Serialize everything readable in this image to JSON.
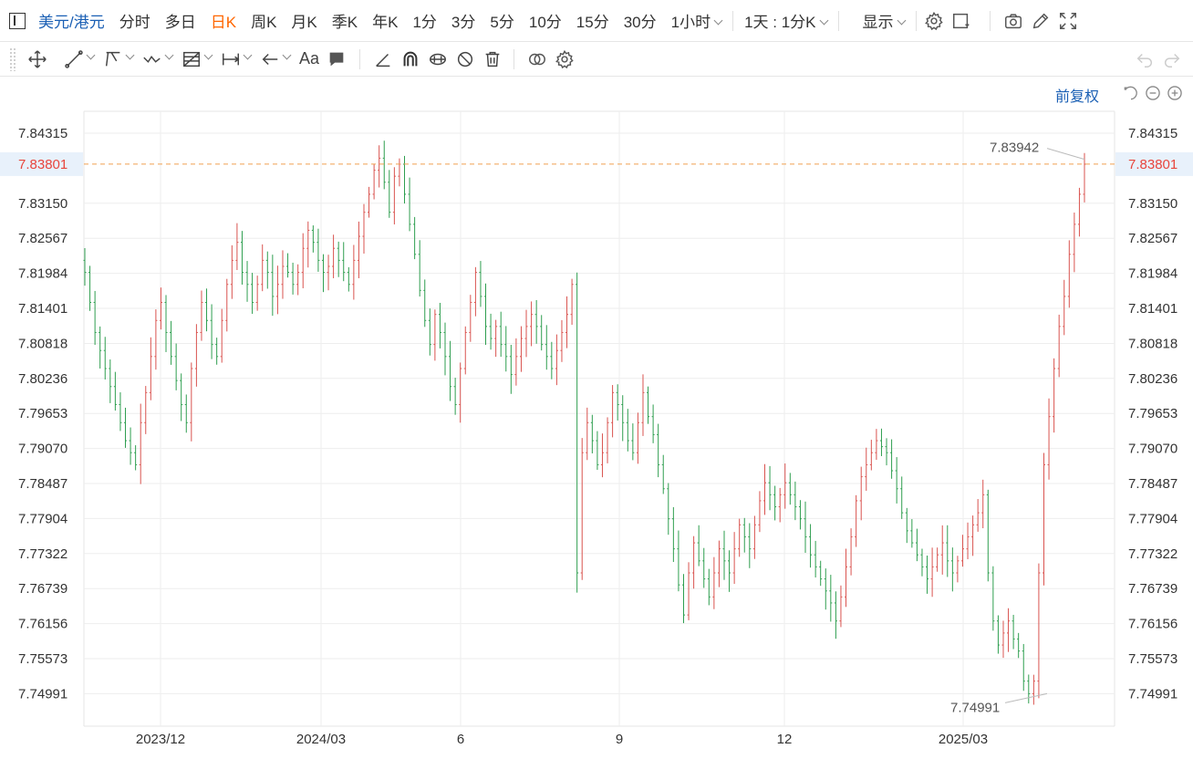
{
  "toolbar": {
    "symbol": "美元/港元",
    "periods": [
      "分时",
      "多日",
      "日K",
      "周K",
      "月K",
      "季K",
      "年K",
      "1分",
      "3分",
      "5分",
      "10分",
      "15分",
      "30分"
    ],
    "active_period": "日K",
    "hour_dropdown": "1小时",
    "range_dropdown": "1天 : 1分K",
    "display_dropdown": "显示"
  },
  "adjust": {
    "label": "前复权"
  },
  "colors": {
    "up": "#d9534f",
    "down": "#2e9e4f",
    "current_price": "#e8463c",
    "dashed_line": "#f0a050",
    "grid": "#eeeeee"
  },
  "chart_data": {
    "type": "candlestick",
    "y_ticks": [
      "7.84315",
      "7.83801",
      "7.83150",
      "7.82567",
      "7.81984",
      "7.81401",
      "7.80818",
      "7.80236",
      "7.79653",
      "7.79070",
      "7.78487",
      "7.77904",
      "7.77322",
      "7.76739",
      "7.76156",
      "7.75573",
      "7.74991"
    ],
    "x_ticks": [
      "2023/12",
      "2024/03",
      "6",
      "9",
      "12",
      "2025/03"
    ],
    "current_price": "7.83801",
    "max_label": "7.83942",
    "min_label": "7.74991",
    "ylim": [
      7.7445,
      7.8468
    ],
    "series_close": [
      7.82,
      7.815,
      7.81,
      7.807,
      7.804,
      7.801,
      7.798,
      7.795,
      7.792,
      7.79,
      7.788,
      7.795,
      7.8,
      7.806,
      7.812,
      7.815,
      7.81,
      7.806,
      7.802,
      7.798,
      7.795,
      7.804,
      7.81,
      7.815,
      7.812,
      7.808,
      7.806,
      7.812,
      7.818,
      7.822,
      7.825,
      7.82,
      7.818,
      7.815,
      7.818,
      7.822,
      7.82,
      7.816,
      7.818,
      7.821,
      7.82,
      7.818,
      7.82,
      7.824,
      7.827,
      7.825,
      7.822,
      7.82,
      7.821,
      7.824,
      7.822,
      7.82,
      7.818,
      7.822,
      7.826,
      7.83,
      7.833,
      7.837,
      7.839,
      7.835,
      7.83,
      7.836,
      7.838,
      7.833,
      7.828,
      7.823,
      7.817,
      7.812,
      7.808,
      7.813,
      7.81,
      7.806,
      7.801,
      7.798,
      7.804,
      7.81,
      7.815,
      7.82,
      7.816,
      7.811,
      7.809,
      7.811,
      7.808,
      7.806,
      7.803,
      7.806,
      7.809,
      7.811,
      7.813,
      7.811,
      7.808,
      7.806,
      7.804,
      7.807,
      7.81,
      7.813,
      7.818,
      7.77,
      7.79,
      7.795,
      7.792,
      7.788,
      7.79,
      7.795,
      7.8,
      7.798,
      7.795,
      7.792,
      7.79,
      7.795,
      7.8,
      7.796,
      7.793,
      7.788,
      7.784,
      7.779,
      7.774,
      7.768,
      7.763,
      7.77,
      7.775,
      7.772,
      7.769,
      7.766,
      7.77,
      7.774,
      7.772,
      7.77,
      7.774,
      7.778,
      7.776,
      7.774,
      7.778,
      7.782,
      7.785,
      7.783,
      7.781,
      7.783,
      7.785,
      7.783,
      7.781,
      7.779,
      7.776,
      7.773,
      7.771,
      7.769,
      7.767,
      7.765,
      7.762,
      7.766,
      7.771,
      7.776,
      7.782,
      7.786,
      7.788,
      7.79,
      7.792,
      7.791,
      7.79,
      7.787,
      7.784,
      7.78,
      7.777,
      7.775,
      7.773,
      7.771,
      7.769,
      7.771,
      7.773,
      7.775,
      7.772,
      7.77,
      7.772,
      7.774,
      7.776,
      7.778,
      7.78,
      7.783,
      7.77,
      7.762,
      7.758,
      7.76,
      7.762,
      7.759,
      7.757,
      7.752,
      7.7499,
      7.752,
      7.77,
      7.788,
      7.796,
      7.804,
      7.811,
      7.816,
      7.823,
      7.828,
      7.833,
      7.838
    ]
  }
}
